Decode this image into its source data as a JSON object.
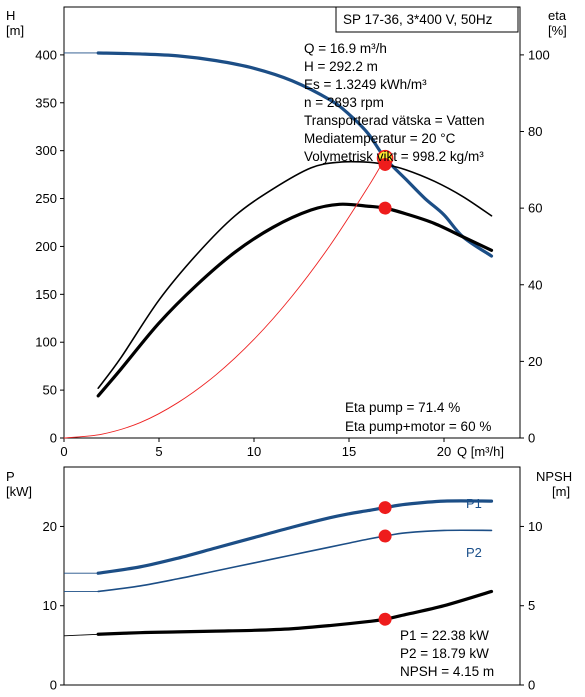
{
  "chart_data": [
    {
      "type": "line",
      "title_box": "SP 17-36, 3*400 V, 50Hz",
      "left_axis": {
        "label_top": "H",
        "label_unit": "[m]",
        "ylim": [
          0,
          450
        ],
        "ticks": [
          0,
          50,
          100,
          150,
          200,
          250,
          300,
          350,
          400
        ]
      },
      "right_axis": {
        "label_top": "eta",
        "label_unit": "[%]",
        "ylim": [
          0,
          112.5
        ],
        "ticks": [
          0,
          20,
          40,
          60,
          80,
          100
        ]
      },
      "x_axis": {
        "label": "Q [m³/h]",
        "xlim": [
          0,
          24
        ],
        "ticks": [
          0,
          5,
          10,
          15,
          20
        ]
      },
      "info_lines": [
        "Q = 16.9 m³/h",
        "H = 292.2 m",
        "Es = 1.3249 kWh/m³",
        "n = 2893 rpm",
        "Transporterad vätska = Vatten",
        "Mediatemperatur = 20 °C",
        "Volymetrisk vikt = 998.2 kg/m³"
      ],
      "efficiency_lines": [
        "Eta pump = 71.4 %",
        "Eta pump+motor = 60 %"
      ],
      "series": [
        {
          "key": "H",
          "axis": "left",
          "color": "#1c4e86",
          "x": [
            0,
            1.8,
            4,
            6,
            8,
            10,
            12,
            14,
            15,
            16,
            16.9,
            18,
            19,
            20,
            21,
            22.5
          ],
          "y": [
            402,
            402,
            401,
            399,
            394,
            386,
            373,
            353,
            338,
            318,
            292.2,
            270,
            250,
            233,
            210,
            190
          ]
        },
        {
          "key": "eta_pump",
          "axis": "right",
          "color": "#000000",
          "x": [
            1.8,
            3,
            5,
            7,
            9,
            11,
            13,
            14.5,
            16,
            16.9,
            18,
            19.5,
            21,
            22.5
          ],
          "y": [
            13,
            21,
            36,
            48,
            58,
            65,
            70.5,
            72,
            72,
            71.4,
            70,
            67,
            63,
            58
          ]
        },
        {
          "key": "eta_pump_motor",
          "axis": "right",
          "color": "#000000",
          "x": [
            1.8,
            3,
            5,
            7,
            9,
            11,
            13,
            14.5,
            16,
            16.9,
            18,
            19.5,
            21,
            22.5
          ],
          "y": [
            11,
            18,
            30,
            40,
            48.5,
            55,
            59.5,
            61,
            60.5,
            60,
            58.5,
            56,
            52.5,
            49
          ]
        },
        {
          "key": "system_curve",
          "axis": "left",
          "color": "#ee2222",
          "x": [
            0,
            2,
            4,
            6,
            8,
            10,
            12,
            14,
            16,
            16.9
          ],
          "y": [
            0,
            4,
            16,
            37,
            66,
            103,
            148,
            201,
            262,
            292.2
          ]
        }
      ],
      "duty_points": [
        {
          "x": 16.9,
          "y": 292.2,
          "axis": "left",
          "fill": "#ffee33"
        },
        {
          "x": 16.9,
          "y": 71.4,
          "axis": "right",
          "fill": "#ee1c1c"
        },
        {
          "x": 16.9,
          "y": 60,
          "axis": "right",
          "fill": "#ee1c1c"
        }
      ]
    },
    {
      "type": "line",
      "left_axis": {
        "label_top": "P",
        "label_unit": "[kW]",
        "ylim": [
          0,
          27.5
        ],
        "ticks": [
          0,
          10,
          20
        ]
      },
      "right_axis": {
        "label_top": "NPSH",
        "label_unit": "[m]",
        "ylim": [
          0,
          13.75
        ],
        "ticks": [
          0,
          5,
          10
        ]
      },
      "x_axis": {
        "xlim": [
          0,
          24
        ]
      },
      "info_lines": [
        "P1 = 22.38 kW",
        "P2 = 18.79 kW",
        "NPSH = 4.15 m"
      ],
      "series": [
        {
          "name": "P1",
          "axis": "left",
          "color": "#1c4e86",
          "x": [
            0,
            1.8,
            4,
            6,
            8,
            10,
            12,
            14,
            15,
            16,
            16.9,
            18,
            20,
            22.5
          ],
          "y": [
            14.1,
            14.1,
            14.9,
            16.0,
            17.3,
            18.6,
            19.9,
            21.1,
            21.6,
            22.0,
            22.38,
            22.8,
            23.2,
            23.2
          ]
        },
        {
          "name": "P2",
          "axis": "left",
          "color": "#1c4e86",
          "x": [
            0,
            1.8,
            4,
            6,
            8,
            10,
            12,
            14,
            15,
            16,
            16.9,
            18,
            20,
            22.5
          ],
          "y": [
            11.8,
            11.8,
            12.5,
            13.4,
            14.4,
            15.4,
            16.4,
            17.4,
            17.9,
            18.4,
            18.79,
            19.2,
            19.5,
            19.5
          ]
        },
        {
          "key": "NPSH",
          "axis": "right",
          "color": "#000000",
          "x": [
            0,
            1.8,
            4,
            6,
            8,
            10,
            12,
            14,
            16,
            16.9,
            18,
            20,
            22.5
          ],
          "y": [
            3.1,
            3.2,
            3.3,
            3.35,
            3.4,
            3.45,
            3.55,
            3.75,
            4.0,
            4.15,
            4.45,
            5.0,
            5.9
          ]
        }
      ],
      "duty_points": [
        {
          "x": 16.9,
          "y": 22.38,
          "axis": "left",
          "fill": "#ee1c1c"
        },
        {
          "x": 16.9,
          "y": 18.79,
          "axis": "left",
          "fill": "#ee1c1c"
        },
        {
          "x": 16.9,
          "y": 4.15,
          "axis": "right",
          "fill": "#ee1c1c"
        }
      ]
    }
  ]
}
